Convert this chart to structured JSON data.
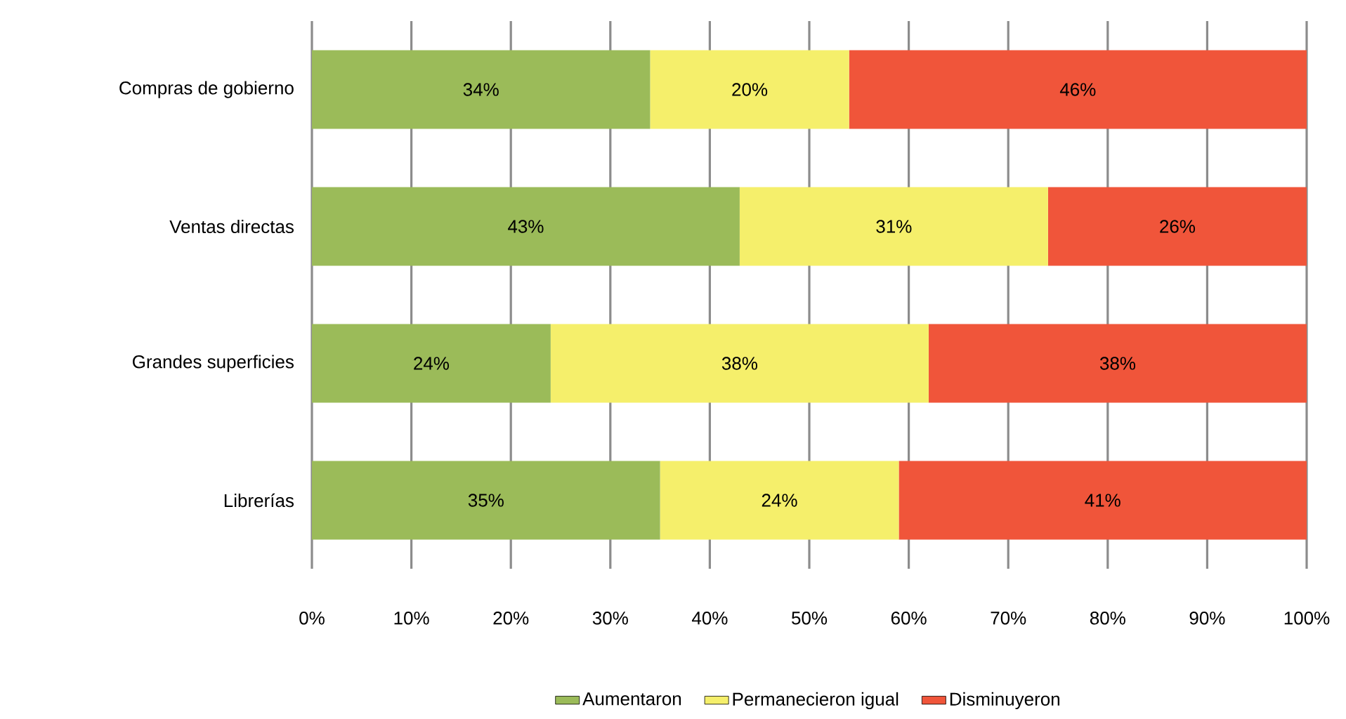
{
  "chart_data": {
    "type": "bar",
    "orientation": "horizontal",
    "stacked": true,
    "categories": [
      "Compras de gobierno",
      "Ventas directas",
      "Grandes superficies",
      "Librerías"
    ],
    "series": [
      {
        "name": "Aumentaron",
        "color": "#9bbb59",
        "values": [
          34,
          43,
          24,
          35
        ],
        "value_labels": [
          "34%",
          "43%",
          "24%",
          "35%"
        ]
      },
      {
        "name": "Permanecieron igual",
        "color": "#f5ef6b",
        "values": [
          20,
          31,
          38,
          24
        ],
        "value_labels": [
          "20%",
          "31%",
          "38%",
          "24%"
        ]
      },
      {
        "name": "Disminuyeron",
        "color": "#f0553a",
        "values": [
          46,
          26,
          38,
          41
        ],
        "value_labels": [
          "46%",
          "26%",
          "38%",
          "41%"
        ]
      }
    ],
    "xlim": [
      0,
      100
    ],
    "xticks": [
      {
        "value": 0,
        "label": "0%"
      },
      {
        "value": 10,
        "label": "10%"
      },
      {
        "value": 20,
        "label": "20%"
      },
      {
        "value": 30,
        "label": "30%"
      },
      {
        "value": 40,
        "label": "40%"
      },
      {
        "value": 50,
        "label": "50%"
      },
      {
        "value": 60,
        "label": "60%"
      },
      {
        "value": 70,
        "label": "70%"
      },
      {
        "value": 80,
        "label": "80%"
      },
      {
        "value": 90,
        "label": "90%"
      },
      {
        "value": 100,
        "label": "100%"
      }
    ],
    "grid": "x",
    "legend": "bottom"
  }
}
